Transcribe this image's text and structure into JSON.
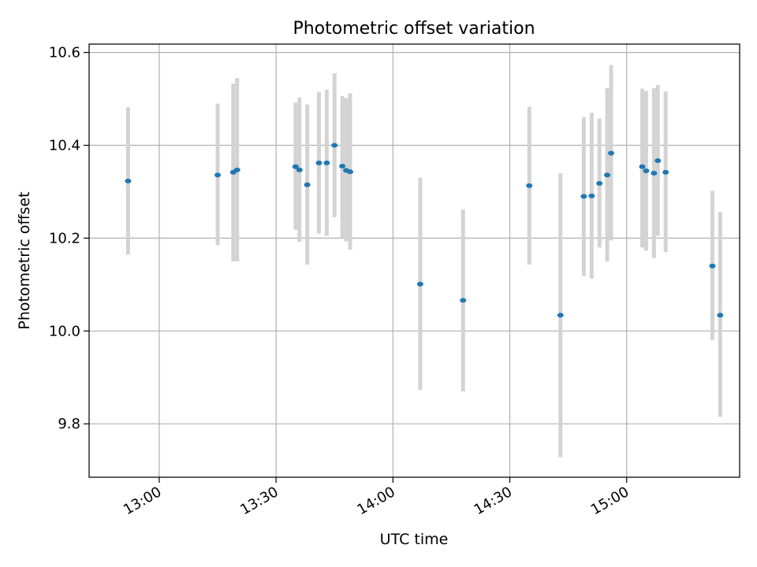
{
  "chart_data": {
    "type": "scatter",
    "title": "Photometric offset variation",
    "xlabel": "UTC time",
    "ylabel": "Photometric offset",
    "grid": true,
    "xlim": [
      "12:42",
      "15:29"
    ],
    "ylim": [
      9.685,
      10.618
    ],
    "x_ticks": [
      "13:00",
      "13:30",
      "14:00",
      "14:30",
      "15:00"
    ],
    "y_ticks": [
      9.8,
      10.0,
      10.2,
      10.4,
      10.6
    ],
    "y_tick_labels": [
      "9.8",
      "10.0",
      "10.2",
      "10.4",
      "10.6"
    ],
    "colors": {
      "marker": "#1f77b4",
      "errorbar": "#d3d3d3",
      "grid": "#b0b0b0"
    },
    "series": [
      {
        "marker": "dot",
        "points": [
          {
            "x": "12:52",
            "y": 10.323,
            "ylo": 10.164,
            "yhi": 10.482
          },
          {
            "x": "13:15",
            "y": 10.336,
            "ylo": 10.185,
            "yhi": 10.49
          },
          {
            "x": "13:19",
            "y": 10.342,
            "ylo": 10.15,
            "yhi": 10.533
          },
          {
            "x": "13:20",
            "y": 10.347,
            "ylo": 10.15,
            "yhi": 10.545
          },
          {
            "x": "13:35",
            "y": 10.354,
            "ylo": 10.218,
            "yhi": 10.492
          },
          {
            "x": "13:36",
            "y": 10.347,
            "ylo": 10.192,
            "yhi": 10.503
          },
          {
            "x": "13:38",
            "y": 10.315,
            "ylo": 10.143,
            "yhi": 10.488
          },
          {
            "x": "13:41",
            "y": 10.362,
            "ylo": 10.21,
            "yhi": 10.515
          },
          {
            "x": "13:43",
            "y": 10.362,
            "ylo": 10.205,
            "yhi": 10.52
          },
          {
            "x": "13:45",
            "y": 10.4,
            "ylo": 10.245,
            "yhi": 10.555
          },
          {
            "x": "13:47",
            "y": 10.355,
            "ylo": 10.2,
            "yhi": 10.506
          },
          {
            "x": "13:48",
            "y": 10.346,
            "ylo": 10.193,
            "yhi": 10.502
          },
          {
            "x": "13:49",
            "y": 10.343,
            "ylo": 10.175,
            "yhi": 10.512
          },
          {
            "x": "14:07",
            "y": 10.101,
            "ylo": 9.873,
            "yhi": 10.33
          },
          {
            "x": "14:18",
            "y": 10.066,
            "ylo": 9.87,
            "yhi": 10.262
          },
          {
            "x": "14:35",
            "y": 10.313,
            "ylo": 10.143,
            "yhi": 10.483
          },
          {
            "x": "14:43",
            "y": 10.034,
            "ylo": 9.728,
            "yhi": 10.34
          },
          {
            "x": "14:49",
            "y": 10.29,
            "ylo": 10.118,
            "yhi": 10.461
          },
          {
            "x": "14:51",
            "y": 10.291,
            "ylo": 10.113,
            "yhi": 10.47
          },
          {
            "x": "14:53",
            "y": 10.318,
            "ylo": 10.18,
            "yhi": 10.458
          },
          {
            "x": "14:55",
            "y": 10.336,
            "ylo": 10.15,
            "yhi": 10.523
          },
          {
            "x": "14:56",
            "y": 10.383,
            "ylo": 10.195,
            "yhi": 10.573
          },
          {
            "x": "15:04",
            "y": 10.354,
            "ylo": 10.18,
            "yhi": 10.522
          },
          {
            "x": "15:05",
            "y": 10.345,
            "ylo": 10.173,
            "yhi": 10.517
          },
          {
            "x": "15:07",
            "y": 10.34,
            "ylo": 10.157,
            "yhi": 10.523
          },
          {
            "x": "15:08",
            "y": 10.367,
            "ylo": 10.205,
            "yhi": 10.53
          },
          {
            "x": "15:10",
            "y": 10.342,
            "ylo": 10.17,
            "yhi": 10.516
          },
          {
            "x": "15:22",
            "y": 10.14,
            "ylo": 9.98,
            "yhi": 10.302
          },
          {
            "x": "15:24",
            "y": 10.034,
            "ylo": 9.815,
            "yhi": 10.256
          }
        ]
      }
    ]
  }
}
